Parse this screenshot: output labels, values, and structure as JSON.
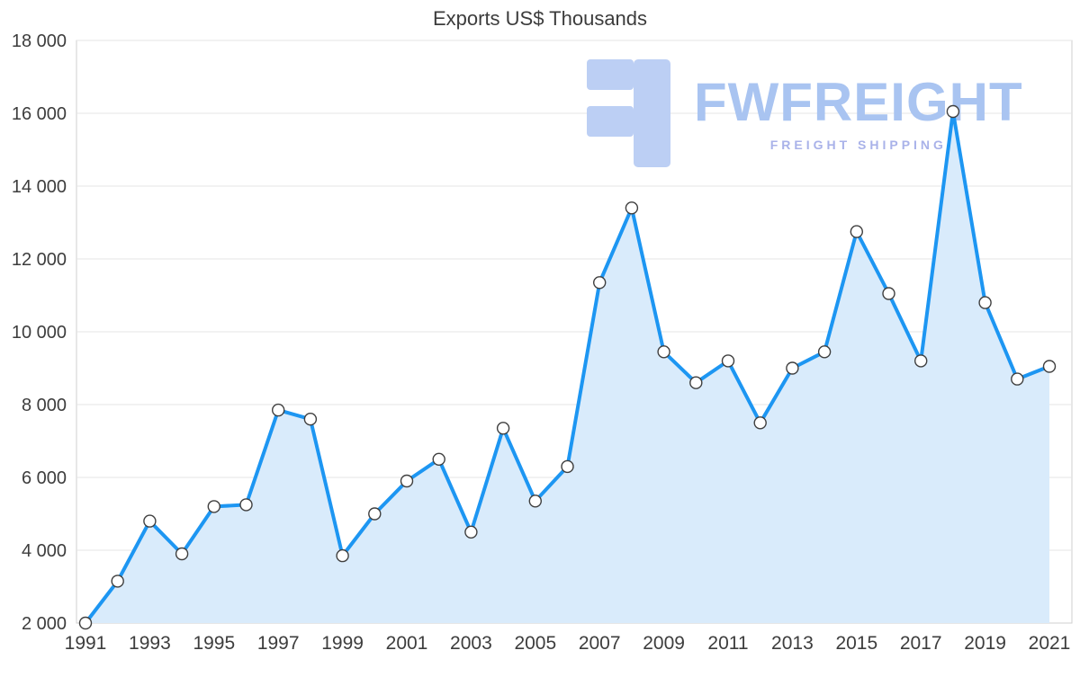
{
  "page": {
    "background": "#ffffff"
  },
  "chart_data": {
    "type": "area",
    "title": "Exports US$ Thousands",
    "x": [
      1991,
      1992,
      1993,
      1994,
      1995,
      1996,
      1997,
      1998,
      1999,
      2000,
      2001,
      2002,
      2003,
      2004,
      2005,
      2006,
      2007,
      2008,
      2009,
      2010,
      2011,
      2012,
      2013,
      2014,
      2015,
      2016,
      2017,
      2018,
      2019,
      2020,
      2021
    ],
    "values": [
      2000,
      3150,
      4800,
      3900,
      5200,
      5250,
      7850,
      7600,
      3850,
      5000,
      5900,
      6500,
      4500,
      7350,
      5350,
      6300,
      11350,
      13400,
      9450,
      8600,
      9200,
      7500,
      9000,
      9450,
      12750,
      11050,
      9200,
      16050,
      10800,
      8700,
      9050
    ],
    "ylim": [
      2000,
      18000
    ],
    "yticks": [
      2000,
      4000,
      6000,
      8000,
      10000,
      12000,
      14000,
      16000,
      18000
    ],
    "ytick_labels": [
      "2 000",
      "4 000",
      "6 000",
      "8 000",
      "10 000",
      "12 000",
      "14 000",
      "16 000",
      "18 000"
    ],
    "xtick_labels": [
      "1991",
      "1993",
      "1995",
      "1997",
      "1999",
      "2001",
      "2003",
      "2005",
      "2007",
      "2009",
      "2011",
      "2013",
      "2015",
      "2017",
      "2019",
      "2021"
    ],
    "xlabel": "",
    "ylabel": "",
    "grid": true,
    "legend": "none",
    "marker": "circle",
    "colors": {
      "line": "#1d96f2",
      "area_fill": "#d9ebfb",
      "marker_fill": "#ffffff",
      "marker_stroke": "#3f3f3f",
      "grid": "#e4e4e4",
      "axis": "#cfcfcf",
      "tick_text": "#3d3d3d",
      "title_text": "#3c3c3c"
    }
  },
  "watermark": {
    "brand": "FWFREIGHT",
    "tagline": "FREIGHT SHIPPING",
    "logo_icon": "fwfreight-mirrored-f",
    "brand_color": "#a9c4f1",
    "tagline_color": "#a9b2e9",
    "glyph_color": "#bccff4"
  }
}
